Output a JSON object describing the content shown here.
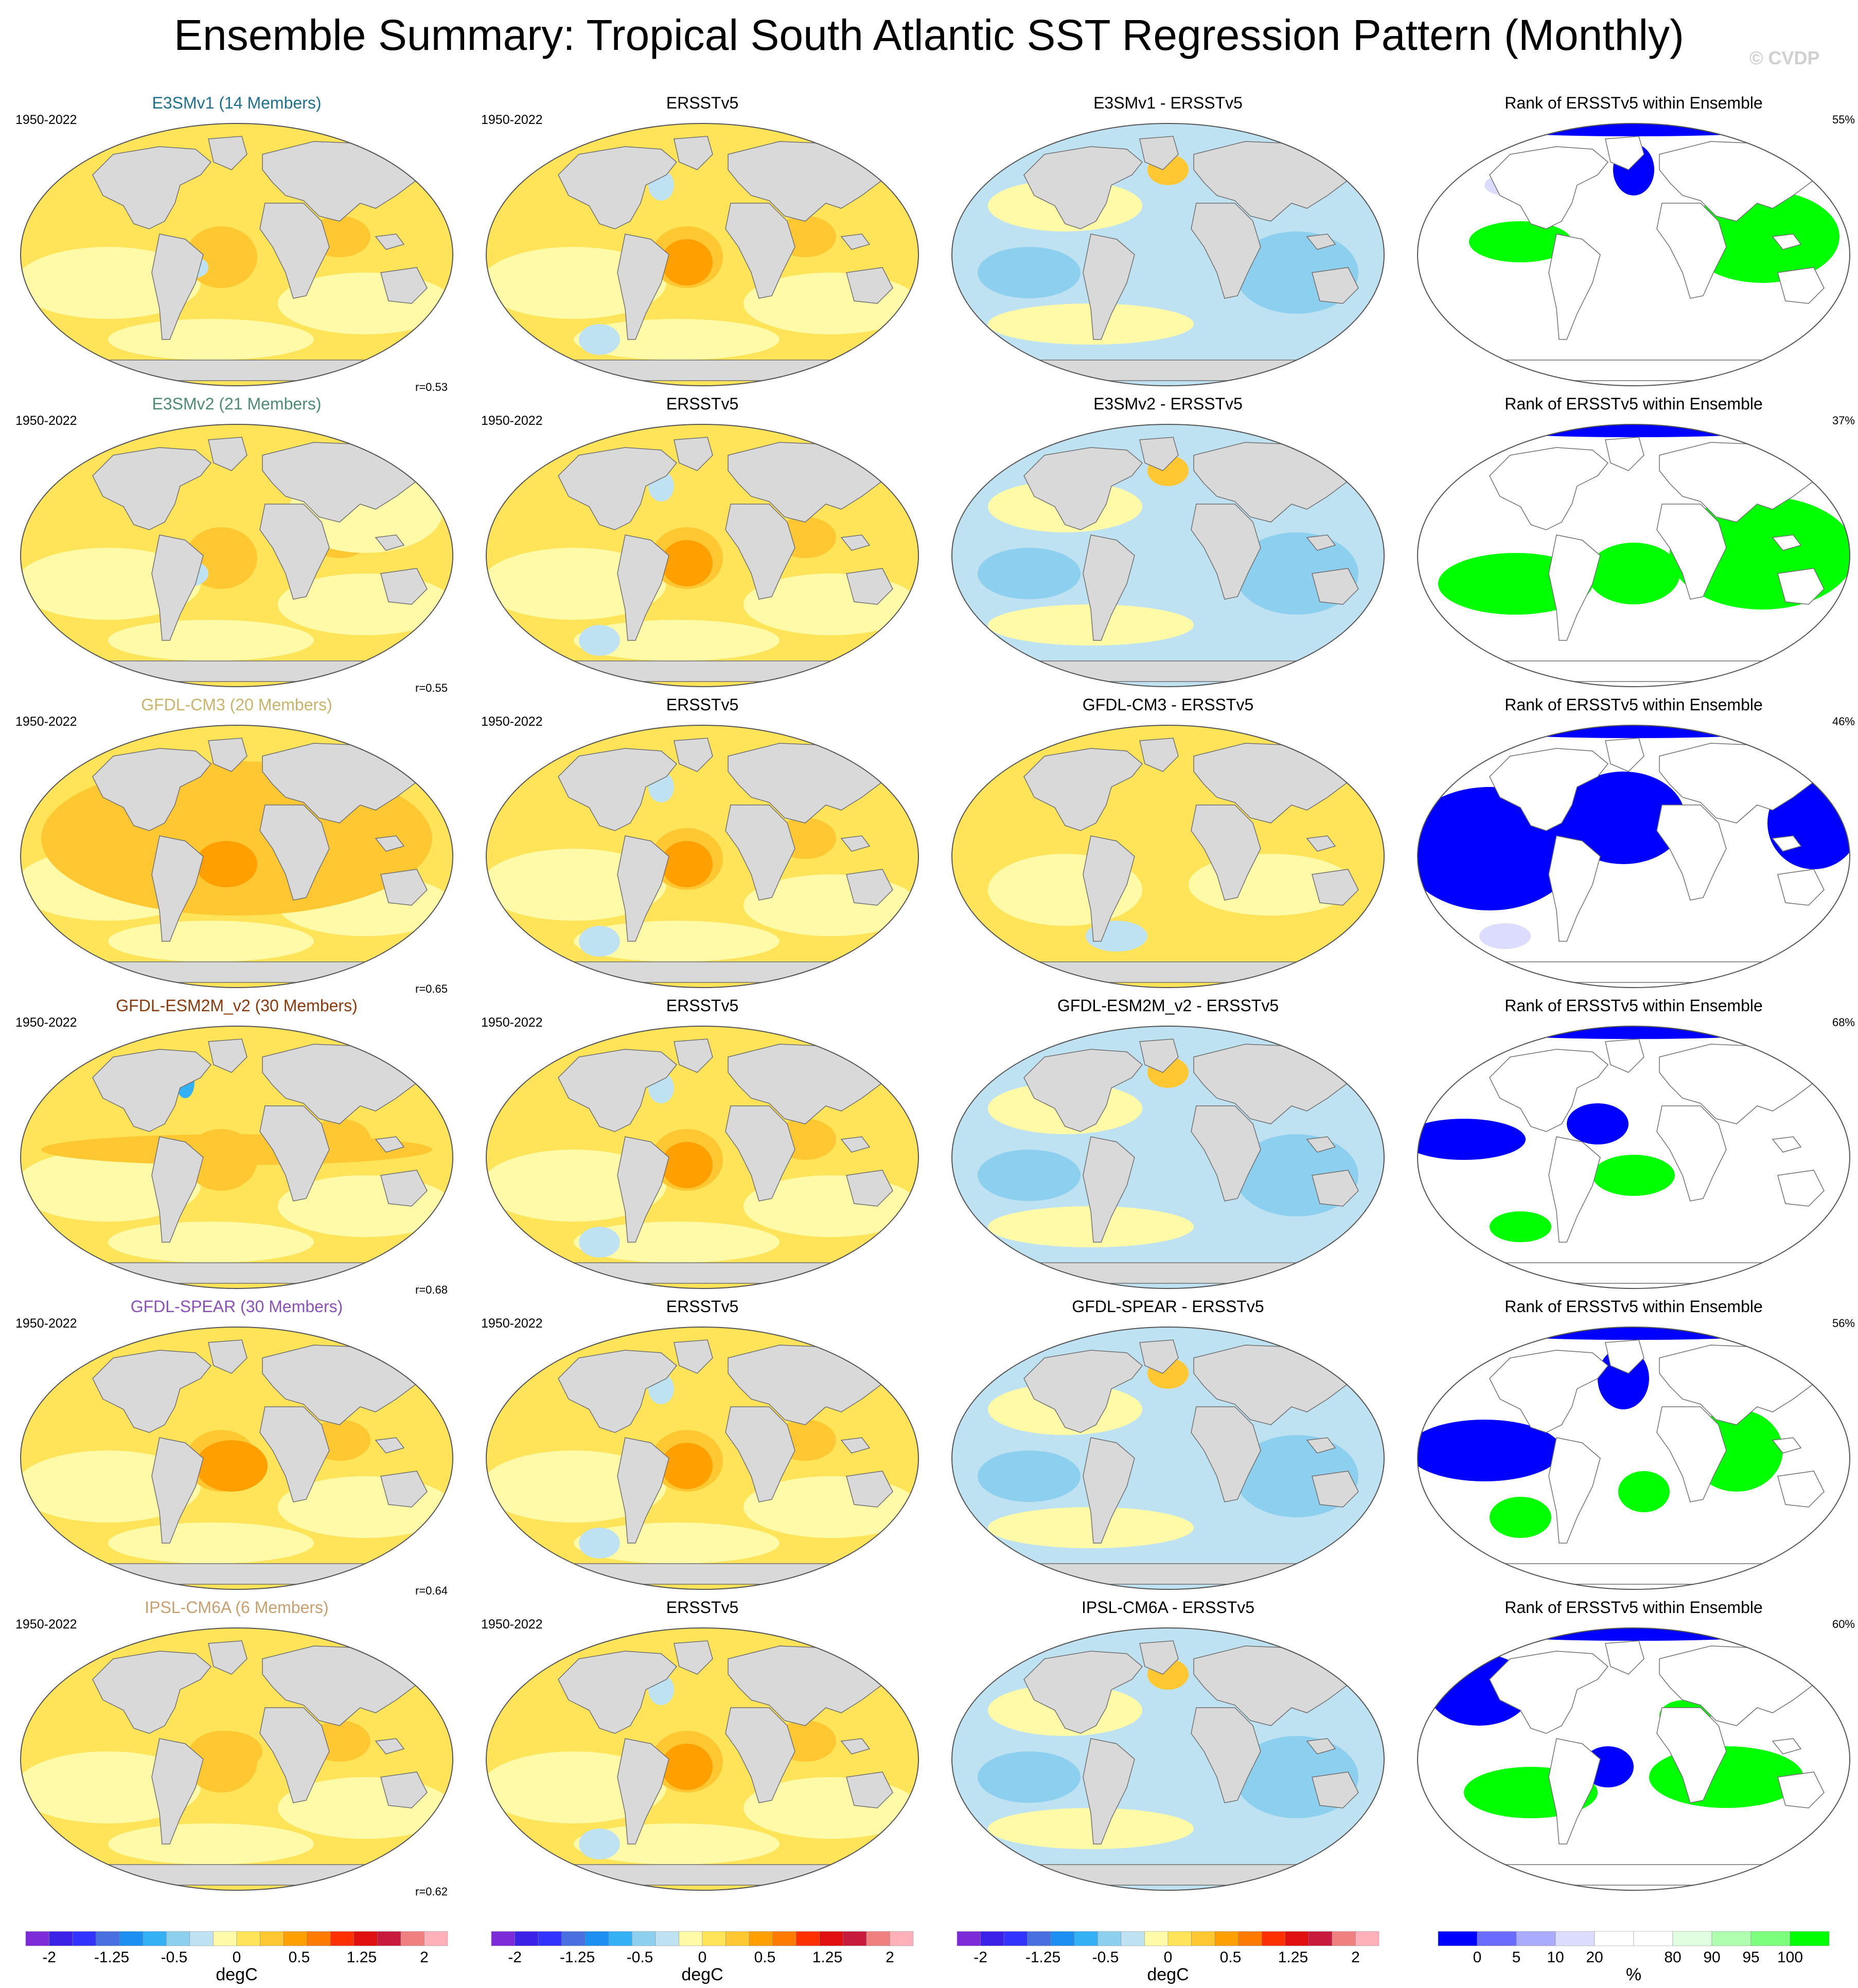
{
  "title": "Ensemble Summary: Tropical South Atlantic SST Regression Pattern (Monthly)",
  "watermark": "© CVDP",
  "rows": [
    {
      "model": "E3SMv1 (14 Members)",
      "color": "#1f6f8f",
      "obs": "ERSSTv5",
      "diff": "E3SMv1 - ERSSTv5",
      "rank_title": "Rank of ERSSTv5 within Ensemble",
      "years": "1950-2022",
      "r": "r=0.53",
      "pct": "55%",
      "scheme": "A"
    },
    {
      "model": "E3SMv2 (21 Members)",
      "color": "#4e8a78",
      "obs": "ERSSTv5",
      "diff": "E3SMv2 - ERSSTv5",
      "rank_title": "Rank of ERSSTv5 within Ensemble",
      "years": "1950-2022",
      "r": "r=0.55",
      "pct": "37%",
      "scheme": "B"
    },
    {
      "model": "GFDL-CM3 (20 Members)",
      "color": "#c8b46a",
      "obs": "ERSSTv5",
      "diff": "GFDL-CM3 - ERSSTv5",
      "rank_title": "Rank of ERSSTv5 within Ensemble",
      "years": "1950-2022",
      "r": "r=0.65",
      "pct": "46%",
      "scheme": "C"
    },
    {
      "model": "GFDL-ESM2M_v2 (30 Members)",
      "color": "#8b3a0e",
      "obs": "ERSSTv5",
      "diff": "GFDL-ESM2M_v2 - ERSSTv5",
      "rank_title": "Rank of ERSSTv5 within Ensemble",
      "years": "1950-2022",
      "r": "r=0.68",
      "pct": "68%",
      "scheme": "D"
    },
    {
      "model": "GFDL-SPEAR (30 Members)",
      "color": "#8a52b8",
      "obs": "ERSSTv5",
      "diff": "GFDL-SPEAR - ERSSTv5",
      "rank_title": "Rank of ERSSTv5 within Ensemble",
      "years": "1950-2022",
      "r": "r=0.64",
      "pct": "56%",
      "scheme": "E"
    },
    {
      "model": "IPSL-CM6A (6 Members)",
      "color": "#c8a070",
      "obs": "ERSSTv5",
      "diff": "IPSL-CM6A - ERSSTv5",
      "rank_title": "Rank of ERSSTv5 within Ensemble",
      "years": "1950-2022",
      "r": "r=0.62",
      "pct": "60%",
      "scheme": "F"
    }
  ],
  "colorbars": [
    {
      "unit": "degC",
      "ticks": [
        "-2",
        "-1.25",
        "-0.5",
        "0",
        "0.5",
        "1.25",
        "2"
      ],
      "colors": [
        "#7d2bd9",
        "#3b22e6",
        "#3333ff",
        "#4a6fe0",
        "#1d8ff2",
        "#34b0f5",
        "#8ccfee",
        "#bfe2f2",
        "#fffaa8",
        "#ffe45a",
        "#ffc832",
        "#ffa000",
        "#ff7a00",
        "#ff3000",
        "#e01010",
        "#c81a3c",
        "#f08080",
        "#ffb0b8"
      ]
    },
    {
      "unit": "degC",
      "ticks": [
        "-2",
        "-1.25",
        "-0.5",
        "0",
        "0.5",
        "1.25",
        "2"
      ],
      "colors": [
        "#7d2bd9",
        "#3b22e6",
        "#3333ff",
        "#4a6fe0",
        "#1d8ff2",
        "#34b0f5",
        "#8ccfee",
        "#bfe2f2",
        "#fffaa8",
        "#ffe45a",
        "#ffc832",
        "#ffa000",
        "#ff7a00",
        "#ff3000",
        "#e01010",
        "#c81a3c",
        "#f08080",
        "#ffb0b8"
      ]
    },
    {
      "unit": "degC",
      "ticks": [
        "-2",
        "-1.25",
        "-0.5",
        "0",
        "0.5",
        "1.25",
        "2"
      ],
      "colors": [
        "#7d2bd9",
        "#3b22e6",
        "#3333ff",
        "#4a6fe0",
        "#1d8ff2",
        "#34b0f5",
        "#8ccfee",
        "#bfe2f2",
        "#fffaa8",
        "#ffe45a",
        "#ffc832",
        "#ffa000",
        "#ff7a00",
        "#ff3000",
        "#e01010",
        "#c81a3c",
        "#f08080",
        "#ffb0b8"
      ]
    },
    {
      "unit": "%",
      "ticks": [
        "0",
        "5",
        "10",
        "20",
        "80",
        "90",
        "95",
        "100"
      ],
      "colors": [
        "#0000ff",
        "#6b6bff",
        "#aaaaff",
        "#dcdcff",
        "#ffffff",
        "#ffffff",
        "#e0ffe0",
        "#b0ffb0",
        "#7cff7c",
        "#00ff00"
      ]
    }
  ]
}
